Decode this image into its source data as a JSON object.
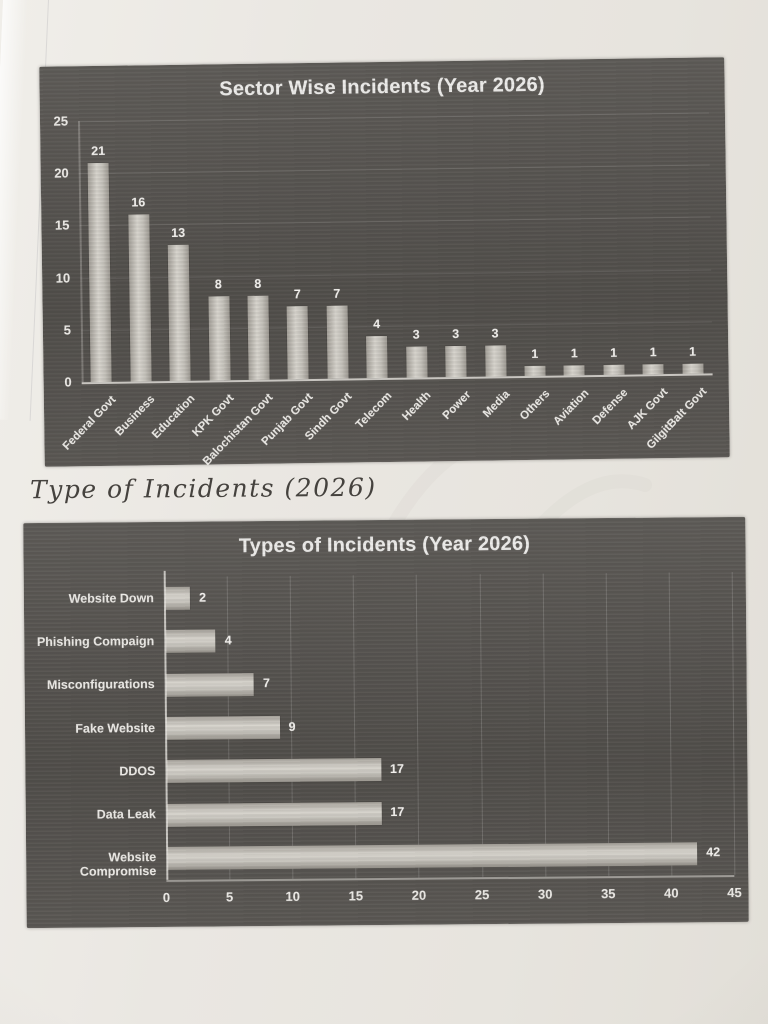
{
  "note": {
    "text": "Type of Incidents (2026)"
  },
  "colors": {
    "paper": "#e9e6e1",
    "chart_background": "#56534f",
    "bar_fill_light": "#cdcac3",
    "axis_text": "#f0eeea",
    "note_ink": "#45423e"
  },
  "chart_data": [
    {
      "type": "bar",
      "title": "Sector Wise Incidents (Year 2026)",
      "categories": [
        "Federal Govt",
        "Business",
        "Education",
        "KPK Govt",
        "Balochistan Govt",
        "Punjab Govt",
        "Sindh Govt",
        "Telecom",
        "Health",
        "Power",
        "Media",
        "Others",
        "Aviation",
        "Defense",
        "AJK Govt",
        "GilgitBalt Govt"
      ],
      "values": [
        21,
        16,
        13,
        8,
        8,
        7,
        7,
        4,
        3,
        3,
        3,
        1,
        1,
        1,
        1,
        1
      ],
      "xlabel": "",
      "ylabel": "",
      "ylim": [
        0,
        25
      ],
      "yticks": [
        0,
        5,
        10,
        15,
        20,
        25
      ],
      "grid": "horizontal-faint",
      "legend": "none",
      "data_labels": true
    },
    {
      "type": "bar",
      "orientation": "horizontal",
      "title": "Types of Incidents (Year 2026)",
      "categories": [
        "Website Down",
        "Phishing Compaign",
        "Misconfigurations",
        "Fake Website",
        "DDOS",
        "Data Leak",
        "Website Compromise"
      ],
      "values": [
        2,
        4,
        7,
        9,
        17,
        17,
        42
      ],
      "xlabel": "",
      "ylabel": "",
      "xlim": [
        0,
        45
      ],
      "xticks": [
        0,
        5,
        10,
        15,
        20,
        25,
        30,
        35,
        40,
        45
      ],
      "grid": "vertical-faint",
      "legend": "none",
      "data_labels": true
    }
  ]
}
